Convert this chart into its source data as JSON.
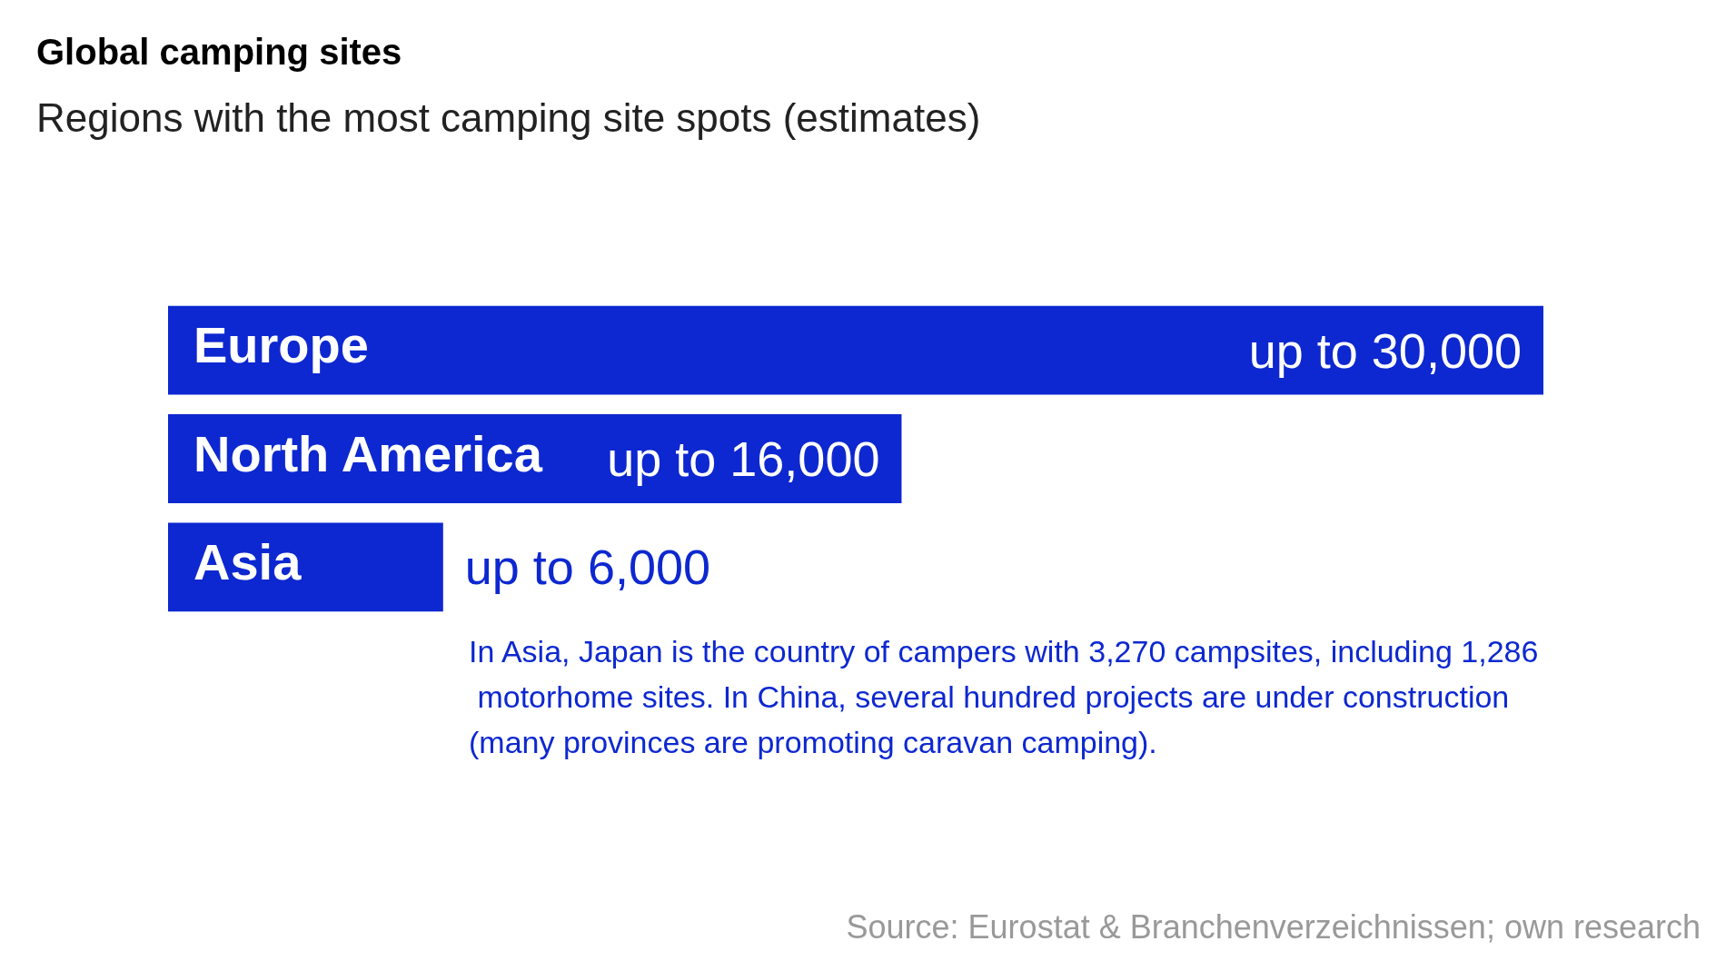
{
  "chart_data": {
    "type": "bar",
    "orientation": "horizontal",
    "title": "Global camping sites",
    "subtitle": "Regions with the most camping site spots (estimates)",
    "categories": [
      "Europe",
      "North America",
      "Asia"
    ],
    "values": [
      30000,
      16000,
      6000
    ],
    "value_labels": [
      "up to 30,000",
      "up to 16,000",
      "up to 6,000"
    ],
    "color": "#0d28d0",
    "annotations": [
      "In Asia, Japan is the country of campers with 3,270 campsites, including 1,286 motorhome sites. In China, several hundred projects are under construction (many provinces are promoting caravan camping).",
      "Source: Eurostat & Branchenverzeichnissen; own research"
    ]
  }
}
